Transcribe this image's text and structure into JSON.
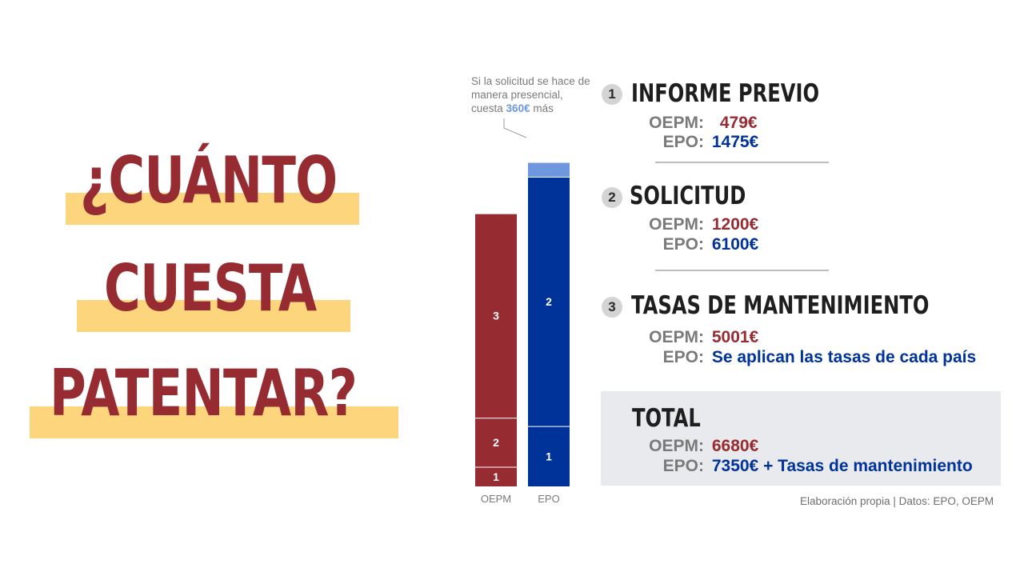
{
  "title": {
    "line1": "¿CUÁNTO",
    "line2": "CUESTA",
    "line3": "PATENTAR?"
  },
  "colors": {
    "oepm": "#962b31",
    "epo": "#003399",
    "epo_extra": "#6e97de",
    "highlight": "#fdd57c"
  },
  "note": {
    "text_before": "Si la solicitud se hace de manera presencial, cuesta",
    "value": "360€",
    "text_after": "más"
  },
  "chart_data": {
    "type": "bar",
    "stacked": true,
    "categories": [
      "OEPM",
      "EPO"
    ],
    "series": [
      {
        "name": "1",
        "values": [
          479,
          1475
        ]
      },
      {
        "name": "2",
        "values": [
          1200,
          6100
        ]
      },
      {
        "name": "3",
        "values": [
          5001,
          0
        ]
      },
      {
        "name": "",
        "values": [
          0,
          360
        ]
      }
    ],
    "segment_labels": [
      "1",
      "2",
      "3",
      ""
    ]
  },
  "sections": [
    {
      "num": "1",
      "title": "INFORME PREVIO",
      "oepm_label": "OEPM:",
      "oepm_value": "479€",
      "epo_label": "EPO:",
      "epo_value": "1475€"
    },
    {
      "num": "2",
      "title": "SOLICITUD",
      "oepm_label": "OEPM:",
      "oepm_value": "1200€",
      "epo_label": "EPO:",
      "epo_value": "6100€"
    },
    {
      "num": "3",
      "title": "TASAS DE MANTENIMIENTO",
      "oepm_label": "OEPM:",
      "oepm_value": "5001€",
      "epo_label": "EPO:",
      "epo_value": "Se aplican las tasas de cada país"
    }
  ],
  "total": {
    "title": "TOTAL",
    "oepm_label": "OEPM:",
    "oepm_value": "6680€",
    "epo_label": "EPO:",
    "epo_value": "7350€ + Tasas de mantenimiento"
  },
  "source": "Elaboración propia | Datos: EPO, OEPM"
}
